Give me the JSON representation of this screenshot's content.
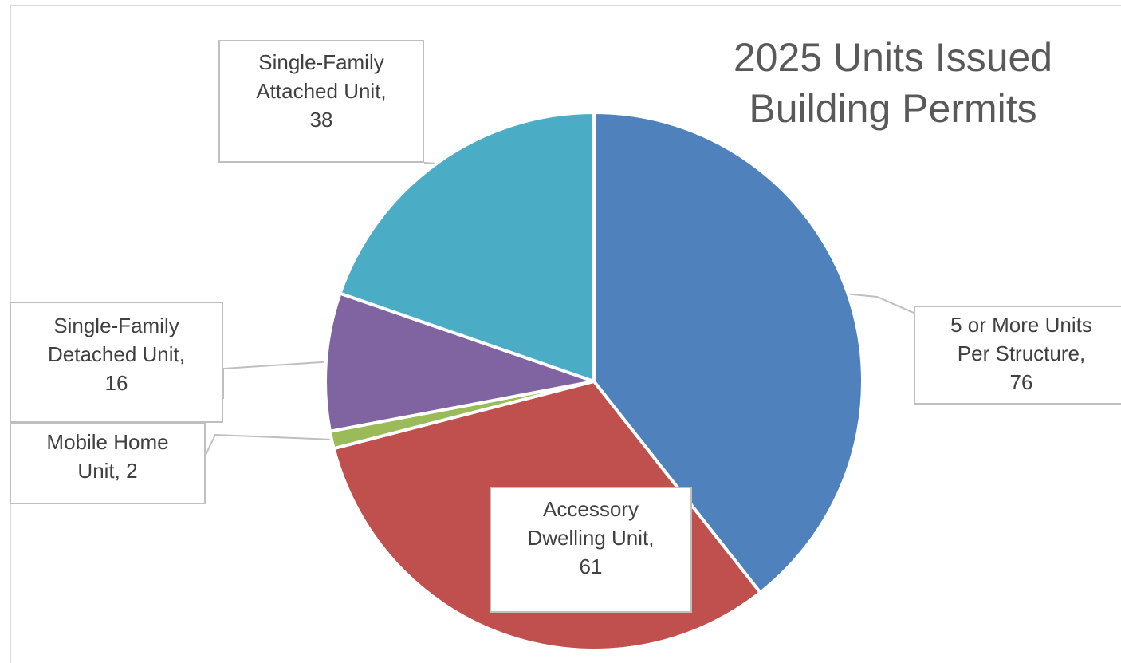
{
  "chart_data": {
    "type": "pie",
    "title_lines": [
      "2025 Units Issued",
      "Building Permits"
    ],
    "start_angle_deg": 0,
    "direction": "clockwise",
    "slices": [
      {
        "label_lines": [
          "5 or More Units",
          "Per Structure,",
          "76"
        ],
        "value": 76,
        "color": "#4f81bd"
      },
      {
        "label_lines": [
          "Accessory",
          "Dwelling Unit,",
          "61"
        ],
        "value": 61,
        "color": "#c0504d"
      },
      {
        "label_lines": [
          "Mobile Home",
          "Unit, 2"
        ],
        "value": 2,
        "color": "#9bbb59"
      },
      {
        "label_lines": [
          "Single-Family",
          "Detached Unit,",
          "16"
        ],
        "value": 16,
        "color": "#8064a2"
      },
      {
        "label_lines": [
          "Single-Family",
          "Attached Unit,",
          "38"
        ],
        "value": 38,
        "color": "#4bacc6"
      }
    ],
    "data_labels": "category-name-and-value",
    "legend": "none"
  }
}
